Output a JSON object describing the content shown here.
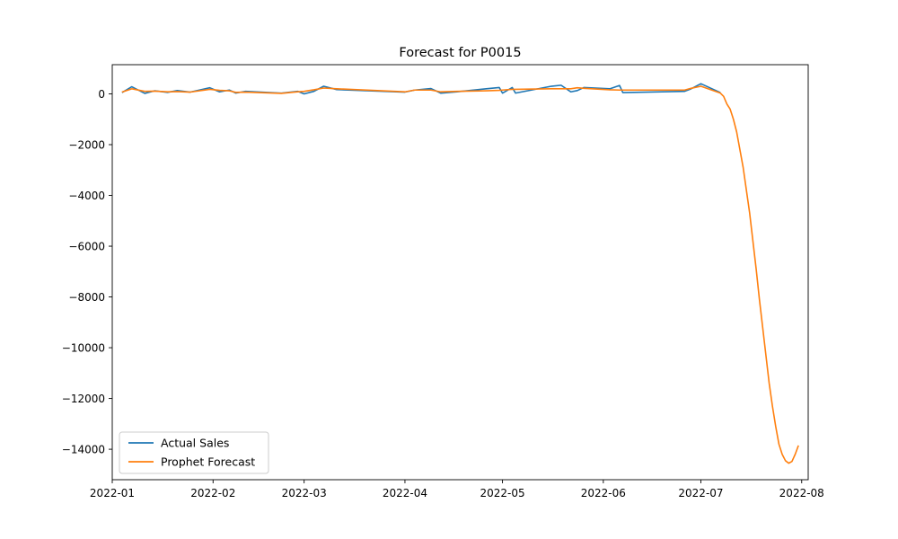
{
  "chart_data": {
    "type": "line",
    "title": "Forecast for P0015",
    "xlabel": "",
    "ylabel": "",
    "xlim": [
      "2022-01-01",
      "2022-08-03"
    ],
    "ylim": [
      -15200,
      1150
    ],
    "x_ticks": [
      "2022-01-01",
      "2022-02-01",
      "2022-03-01",
      "2022-04-01",
      "2022-05-01",
      "2022-06-01",
      "2022-07-01",
      "2022-08-01"
    ],
    "x_tick_labels": [
      "2022-01",
      "2022-02",
      "2022-03",
      "2022-04",
      "2022-05",
      "2022-06",
      "2022-07",
      "2022-08"
    ],
    "y_ticks": [
      0,
      -2000,
      -4000,
      -6000,
      -8000,
      -10000,
      -12000,
      -14000
    ],
    "y_tick_labels": [
      "0",
      "−2000",
      "−4000",
      "−6000",
      "−8000",
      "−10000",
      "−12000",
      "−14000"
    ],
    "grid": false,
    "legend_position": "lower-left",
    "series": [
      {
        "name": "Actual Sales",
        "color": "#1f77b4",
        "points": [
          [
            "2022-01-04",
            50
          ],
          [
            "2022-01-07",
            280
          ],
          [
            "2022-01-11",
            20
          ],
          [
            "2022-01-14",
            120
          ],
          [
            "2022-01-18",
            60
          ],
          [
            "2022-01-21",
            130
          ],
          [
            "2022-01-25",
            70
          ],
          [
            "2022-01-31",
            240
          ],
          [
            "2022-02-03",
            80
          ],
          [
            "2022-02-06",
            150
          ],
          [
            "2022-02-08",
            30
          ],
          [
            "2022-02-11",
            100
          ],
          [
            "2022-02-22",
            30
          ],
          [
            "2022-02-27",
            100
          ],
          [
            "2022-03-01",
            0
          ],
          [
            "2022-03-04",
            100
          ],
          [
            "2022-03-07",
            300
          ],
          [
            "2022-03-11",
            170
          ],
          [
            "2022-04-01",
            70
          ],
          [
            "2022-04-04",
            150
          ],
          [
            "2022-04-09",
            210
          ],
          [
            "2022-04-12",
            30
          ],
          [
            "2022-04-17",
            80
          ],
          [
            "2022-04-26",
            200
          ],
          [
            "2022-04-30",
            250
          ],
          [
            "2022-05-01",
            30
          ],
          [
            "2022-05-04",
            250
          ],
          [
            "2022-05-05",
            30
          ],
          [
            "2022-05-16",
            300
          ],
          [
            "2022-05-19",
            340
          ],
          [
            "2022-05-22",
            80
          ],
          [
            "2022-05-24",
            130
          ],
          [
            "2022-05-26",
            250
          ],
          [
            "2022-06-03",
            200
          ],
          [
            "2022-06-06",
            330
          ],
          [
            "2022-06-07",
            50
          ],
          [
            "2022-06-26",
            100
          ],
          [
            "2022-06-28",
            200
          ],
          [
            "2022-07-01",
            400
          ],
          [
            "2022-07-07",
            50
          ]
        ]
      },
      {
        "name": "Prophet Forecast",
        "color": "#ff7f0e",
        "points": [
          [
            "2022-01-04",
            70
          ],
          [
            "2022-01-07",
            200
          ],
          [
            "2022-01-11",
            100
          ],
          [
            "2022-01-14",
            110
          ],
          [
            "2022-01-18",
            80
          ],
          [
            "2022-01-21",
            90
          ],
          [
            "2022-01-25",
            70
          ],
          [
            "2022-01-31",
            180
          ],
          [
            "2022-02-03",
            140
          ],
          [
            "2022-02-06",
            120
          ],
          [
            "2022-02-08",
            60
          ],
          [
            "2022-02-11",
            70
          ],
          [
            "2022-02-22",
            20
          ],
          [
            "2022-02-27",
            80
          ],
          [
            "2022-03-01",
            100
          ],
          [
            "2022-03-04",
            160
          ],
          [
            "2022-03-07",
            230
          ],
          [
            "2022-03-11",
            200
          ],
          [
            "2022-04-01",
            80
          ],
          [
            "2022-04-04",
            150
          ],
          [
            "2022-04-09",
            150
          ],
          [
            "2022-04-12",
            80
          ],
          [
            "2022-04-17",
            100
          ],
          [
            "2022-04-26",
            120
          ],
          [
            "2022-04-30",
            140
          ],
          [
            "2022-05-01",
            150
          ],
          [
            "2022-05-04",
            180
          ],
          [
            "2022-05-05",
            180
          ],
          [
            "2022-05-16",
            200
          ],
          [
            "2022-05-19",
            200
          ],
          [
            "2022-05-22",
            200
          ],
          [
            "2022-05-24",
            240
          ],
          [
            "2022-05-26",
            220
          ],
          [
            "2022-06-03",
            160
          ],
          [
            "2022-06-06",
            150
          ],
          [
            "2022-06-07",
            150
          ],
          [
            "2022-06-26",
            150
          ],
          [
            "2022-06-28",
            220
          ],
          [
            "2022-07-01",
            300
          ],
          [
            "2022-07-07",
            30
          ],
          [
            "2022-07-08",
            -100
          ],
          [
            "2022-07-09",
            -400
          ],
          [
            "2022-07-10",
            -600
          ],
          [
            "2022-07-11",
            -1000
          ],
          [
            "2022-07-12",
            -1500
          ],
          [
            "2022-07-13",
            -2200
          ],
          [
            "2022-07-14",
            -2900
          ],
          [
            "2022-07-15",
            -3800
          ],
          [
            "2022-07-16",
            -4700
          ],
          [
            "2022-07-17",
            -5800
          ],
          [
            "2022-07-18",
            -6900
          ],
          [
            "2022-07-19",
            -8100
          ],
          [
            "2022-07-20",
            -9200
          ],
          [
            "2022-07-21",
            -10300
          ],
          [
            "2022-07-22",
            -11400
          ],
          [
            "2022-07-23",
            -12300
          ],
          [
            "2022-07-24",
            -13100
          ],
          [
            "2022-07-25",
            -13800
          ],
          [
            "2022-07-26",
            -14200
          ],
          [
            "2022-07-27",
            -14450
          ],
          [
            "2022-07-28",
            -14550
          ],
          [
            "2022-07-29",
            -14480
          ],
          [
            "2022-07-30",
            -14200
          ],
          [
            "2022-07-31",
            -13850
          ]
        ]
      }
    ]
  }
}
